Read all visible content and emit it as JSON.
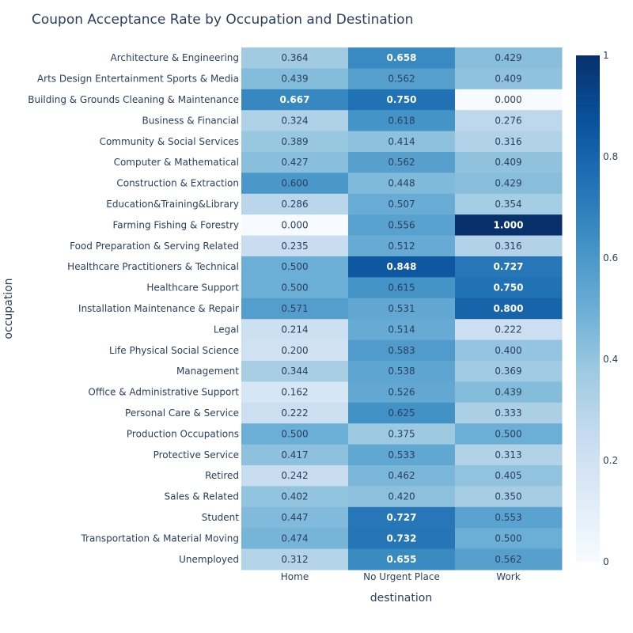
{
  "chart_data": {
    "type": "heatmap",
    "title": "Coupon Acceptance Rate by Occupation and Destination",
    "xlabel": "destination",
    "ylabel": "occupation",
    "x": [
      "Home",
      "No Urgent Place",
      "Work"
    ],
    "y": [
      "Architecture & Engineering",
      "Arts Design Entertainment Sports & Media",
      "Building & Grounds Cleaning & Maintenance",
      "Business & Financial",
      "Community & Social Services",
      "Computer & Mathematical",
      "Construction & Extraction",
      "Education&Training&Library",
      "Farming Fishing & Forestry",
      "Food Preparation & Serving Related",
      "Healthcare Practitioners & Technical",
      "Healthcare Support",
      "Installation Maintenance & Repair",
      "Legal",
      "Life Physical Social Science",
      "Management",
      "Office & Administrative Support",
      "Personal Care & Service",
      "Production Occupations",
      "Protective Service",
      "Retired",
      "Sales & Related",
      "Student",
      "Transportation & Material Moving",
      "Unemployed"
    ],
    "z": [
      [
        0.364,
        0.658,
        0.429
      ],
      [
        0.439,
        0.562,
        0.409
      ],
      [
        0.667,
        0.75,
        0.0
      ],
      [
        0.324,
        0.618,
        0.276
      ],
      [
        0.389,
        0.414,
        0.316
      ],
      [
        0.427,
        0.562,
        0.409
      ],
      [
        0.6,
        0.448,
        0.429
      ],
      [
        0.286,
        0.507,
        0.354
      ],
      [
        0.0,
        0.556,
        1.0
      ],
      [
        0.235,
        0.512,
        0.316
      ],
      [
        0.5,
        0.848,
        0.727
      ],
      [
        0.5,
        0.615,
        0.75
      ],
      [
        0.571,
        0.531,
        0.8
      ],
      [
        0.214,
        0.514,
        0.222
      ],
      [
        0.2,
        0.583,
        0.4
      ],
      [
        0.344,
        0.538,
        0.369
      ],
      [
        0.162,
        0.526,
        0.439
      ],
      [
        0.222,
        0.625,
        0.333
      ],
      [
        0.5,
        0.375,
        0.5
      ],
      [
        0.417,
        0.533,
        0.313
      ],
      [
        0.242,
        0.462,
        0.405
      ],
      [
        0.402,
        0.42,
        0.35
      ],
      [
        0.447,
        0.727,
        0.553
      ],
      [
        0.474,
        0.732,
        0.5
      ],
      [
        0.312,
        0.655,
        0.562
      ]
    ],
    "zlim": [
      0,
      1
    ],
    "text_format": "0.000",
    "colorscale": "Blues",
    "colorbar": {
      "ticks": [
        0,
        0.2,
        0.4,
        0.6,
        0.8,
        1
      ]
    },
    "colors": {
      "text_dark": "#2a3f5f",
      "text_light": "#ffffff",
      "scale_stops": [
        [
          0.0,
          "#f7fbff"
        ],
        [
          0.125,
          "#deebf7"
        ],
        [
          0.25,
          "#c6dbef"
        ],
        [
          0.375,
          "#9ecae1"
        ],
        [
          0.5,
          "#6baed6"
        ],
        [
          0.625,
          "#4292c6"
        ],
        [
          0.75,
          "#2171b5"
        ],
        [
          0.875,
          "#08519c"
        ],
        [
          1.0,
          "#08306b"
        ]
      ]
    }
  }
}
